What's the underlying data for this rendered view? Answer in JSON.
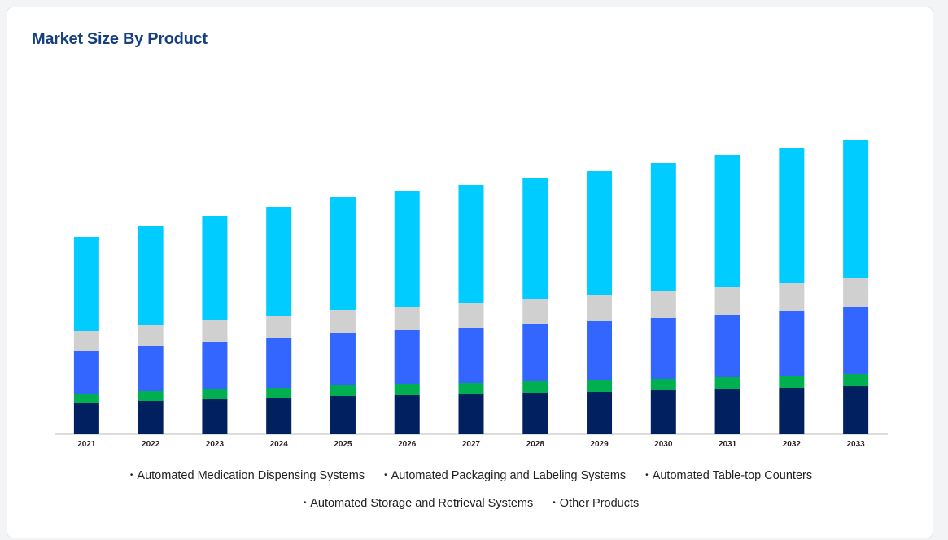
{
  "chart_data": {
    "type": "stacked_bar",
    "title": "Market Size By Product",
    "categories": [
      "2021",
      "2022",
      "2023",
      "2024",
      "2025",
      "2026",
      "2027",
      "2028",
      "2029",
      "2030",
      "2031",
      "2032",
      "2033"
    ],
    "ylim": [
      0,
      370
    ],
    "series": [
      {
        "name": "Automated Medication Dispensing Systems",
        "color": "#002060",
        "values": [
          39,
          41,
          43,
          45,
          47,
          48,
          49,
          51,
          52,
          54,
          56,
          57,
          59
        ]
      },
      {
        "name": "Automated Packaging and Labeling Systems",
        "color": "#00b050",
        "values": [
          11,
          12,
          13,
          12,
          13,
          14,
          14,
          14,
          15,
          14,
          14,
          15,
          15
        ]
      },
      {
        "name": "Automated Table-top Counters",
        "color": "#3366ff",
        "values": [
          53,
          56,
          58,
          61,
          64,
          66,
          68,
          70,
          72,
          75,
          77,
          79,
          82
        ]
      },
      {
        "name": "Automated Storage and Retrieval Systems",
        "color": "#d0d0d0",
        "values": [
          24,
          25,
          27,
          28,
          29,
          29,
          30,
          31,
          32,
          33,
          34,
          35,
          36
        ]
      },
      {
        "name": "Other Products",
        "color": "#00ccff",
        "values": [
          116,
          122,
          128,
          133,
          139,
          142,
          145,
          149,
          153,
          157,
          162,
          166,
          170
        ]
      }
    ]
  }
}
